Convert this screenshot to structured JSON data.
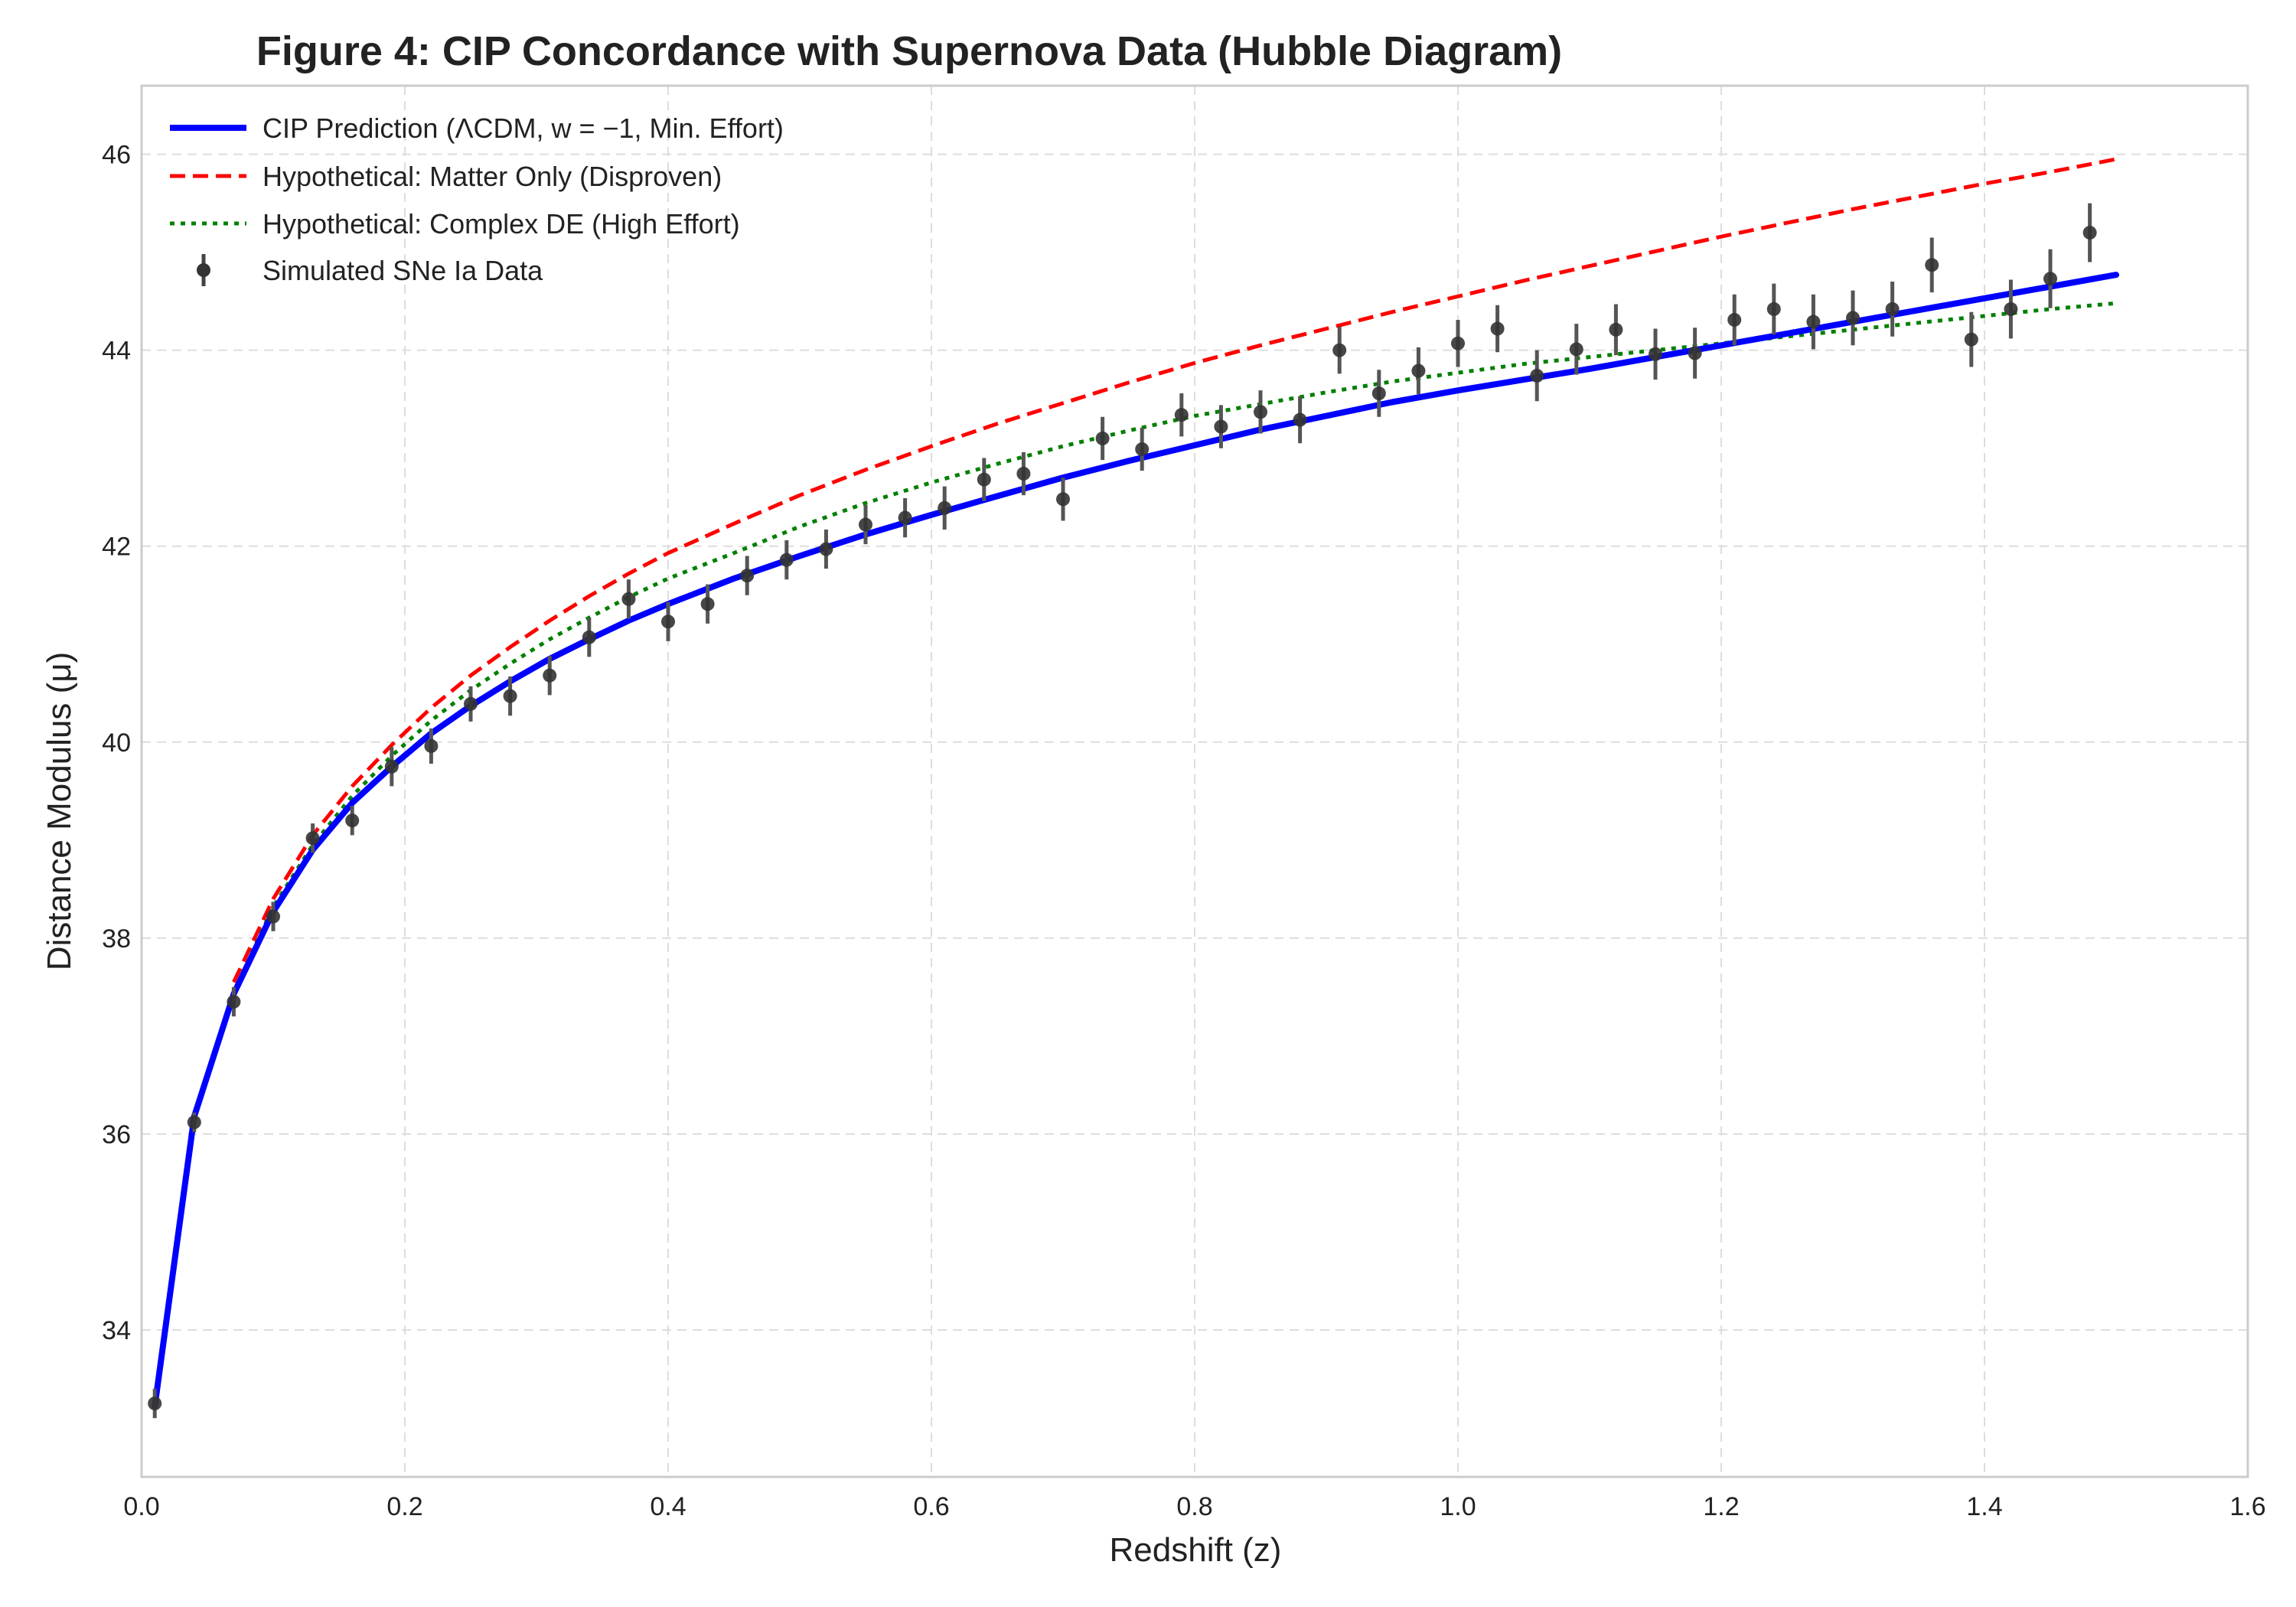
{
  "chart_data": {
    "type": "scatter",
    "title": "Figure 4: CIP Concordance with Supernova Data (Hubble Diagram)",
    "xlabel": "Redshift (z)",
    "ylabel": "Distance Modulus (μ)",
    "xlim": [
      0.0,
      1.6
    ],
    "ylim": [
      32.5,
      46.7
    ],
    "xticks": [
      0.0,
      0.2,
      0.4,
      0.6,
      0.8,
      1.0,
      1.2,
      1.4,
      1.6
    ],
    "xtick_labels": [
      "0.0",
      "0.2",
      "0.4",
      "0.6",
      "0.8",
      "1.0",
      "1.2",
      "1.4",
      "1.6"
    ],
    "yticks": [
      34,
      36,
      38,
      40,
      42,
      44,
      46
    ],
    "ytick_labels": [
      "34",
      "36",
      "38",
      "40",
      "42",
      "44",
      "46"
    ],
    "grid": true,
    "legend_position": "top-left",
    "colors": {
      "cip": "#0000ff",
      "matter": "#ff0000",
      "complex": "#008000",
      "data": "#222222"
    },
    "series": [
      {
        "name": "CIP Prediction (ΛCDM, w = −1, Min. Effort)",
        "style": "solid",
        "color": "#0000ff",
        "x": [
          0.01,
          0.04,
          0.07,
          0.1,
          0.13,
          0.16,
          0.19,
          0.22,
          0.25,
          0.28,
          0.31,
          0.34,
          0.37,
          0.4,
          0.45,
          0.5,
          0.55,
          0.6,
          0.65,
          0.7,
          0.75,
          0.8,
          0.85,
          0.9,
          0.95,
          1.0,
          1.05,
          1.1,
          1.15,
          1.2,
          1.25,
          1.3,
          1.35,
          1.4,
          1.45,
          1.5
        ],
        "y": [
          33.22,
          36.18,
          37.43,
          38.27,
          38.9,
          39.38,
          39.75,
          40.09,
          40.37,
          40.62,
          40.85,
          41.05,
          41.24,
          41.41,
          41.67,
          41.9,
          42.12,
          42.32,
          42.51,
          42.7,
          42.87,
          43.03,
          43.19,
          43.33,
          43.47,
          43.59,
          43.7,
          43.81,
          43.93,
          44.05,
          44.17,
          44.29,
          44.41,
          44.53,
          44.65,
          44.77
        ]
      },
      {
        "name": "Hypothetical: Matter Only (Disproven)",
        "style": "dashed",
        "color": "#ff0000",
        "x": [
          0.07,
          0.1,
          0.13,
          0.16,
          0.19,
          0.22,
          0.25,
          0.28,
          0.31,
          0.34,
          0.37,
          0.4,
          0.45,
          0.5,
          0.55,
          0.6,
          0.65,
          0.7,
          0.75,
          0.8,
          0.85,
          0.9,
          0.95,
          1.0,
          1.05,
          1.1,
          1.15,
          1.2,
          1.25,
          1.3,
          1.35,
          1.4,
          1.45,
          1.5
        ],
        "y": [
          37.55,
          38.4,
          39.05,
          39.55,
          39.97,
          40.35,
          40.68,
          40.97,
          41.24,
          41.49,
          41.72,
          41.93,
          42.23,
          42.52,
          42.78,
          43.02,
          43.25,
          43.46,
          43.67,
          43.87,
          44.05,
          44.22,
          44.39,
          44.55,
          44.71,
          44.86,
          45.01,
          45.16,
          45.3,
          45.44,
          45.57,
          45.7,
          45.82,
          45.95
        ]
      },
      {
        "name": "Hypothetical: Complex DE (High Effort)",
        "style": "dotted",
        "color": "#008000",
        "x": [
          0.07,
          0.1,
          0.13,
          0.16,
          0.19,
          0.22,
          0.25,
          0.28,
          0.31,
          0.34,
          0.37,
          0.4,
          0.45,
          0.5,
          0.55,
          0.6,
          0.65,
          0.7,
          0.75,
          0.8,
          0.85,
          0.9,
          0.95,
          1.0,
          1.05,
          1.1,
          1.15,
          1.2,
          1.25,
          1.3,
          1.35,
          1.4,
          1.45,
          1.5
        ],
        "y": [
          37.45,
          38.32,
          38.95,
          39.45,
          39.86,
          40.22,
          40.53,
          40.8,
          41.05,
          41.27,
          41.48,
          41.67,
          41.93,
          42.2,
          42.44,
          42.65,
          42.84,
          43.02,
          43.18,
          43.33,
          43.45,
          43.57,
          43.68,
          43.77,
          43.86,
          43.93,
          44.0,
          44.07,
          44.14,
          44.21,
          44.28,
          44.35,
          44.42,
          44.48
        ]
      },
      {
        "name": "Simulated SNe Ia Data",
        "style": "errorbar",
        "color": "#222222",
        "x": [
          0.01,
          0.04,
          0.07,
          0.1,
          0.13,
          0.16,
          0.19,
          0.22,
          0.25,
          0.28,
          0.31,
          0.34,
          0.37,
          0.4,
          0.43,
          0.46,
          0.49,
          0.52,
          0.55,
          0.58,
          0.61,
          0.64,
          0.67,
          0.7,
          0.73,
          0.76,
          0.79,
          0.82,
          0.85,
          0.88,
          0.91,
          0.94,
          0.97,
          1.0,
          1.03,
          1.06,
          1.09,
          1.12,
          1.15,
          1.18,
          1.21,
          1.24,
          1.27,
          1.3,
          1.33,
          1.36,
          1.39,
          1.42,
          1.45,
          1.48
        ],
        "y": [
          33.25,
          36.12,
          37.35,
          38.22,
          39.02,
          39.2,
          39.75,
          39.96,
          40.39,
          40.47,
          40.68,
          41.07,
          41.46,
          41.23,
          41.41,
          41.7,
          41.86,
          41.97,
          42.22,
          42.29,
          42.39,
          42.68,
          42.74,
          42.48,
          43.1,
          42.99,
          43.34,
          43.22,
          43.37,
          43.29,
          44.0,
          43.56,
          43.79,
          44.07,
          44.22,
          43.74,
          44.01,
          44.21,
          43.96,
          43.97,
          44.31,
          44.42,
          44.29,
          44.33,
          44.42,
          44.87,
          44.11,
          44.42,
          44.73,
          45.2
        ],
        "yerr": [
          0.15,
          0.1,
          0.15,
          0.15,
          0.15,
          0.15,
          0.2,
          0.18,
          0.18,
          0.2,
          0.2,
          0.2,
          0.2,
          0.2,
          0.2,
          0.2,
          0.2,
          0.2,
          0.2,
          0.2,
          0.22,
          0.22,
          0.22,
          0.22,
          0.22,
          0.22,
          0.22,
          0.22,
          0.22,
          0.24,
          0.24,
          0.24,
          0.24,
          0.24,
          0.24,
          0.26,
          0.26,
          0.26,
          0.26,
          0.26,
          0.26,
          0.26,
          0.28,
          0.28,
          0.28,
          0.28,
          0.28,
          0.3,
          0.3,
          0.3
        ]
      }
    ]
  }
}
